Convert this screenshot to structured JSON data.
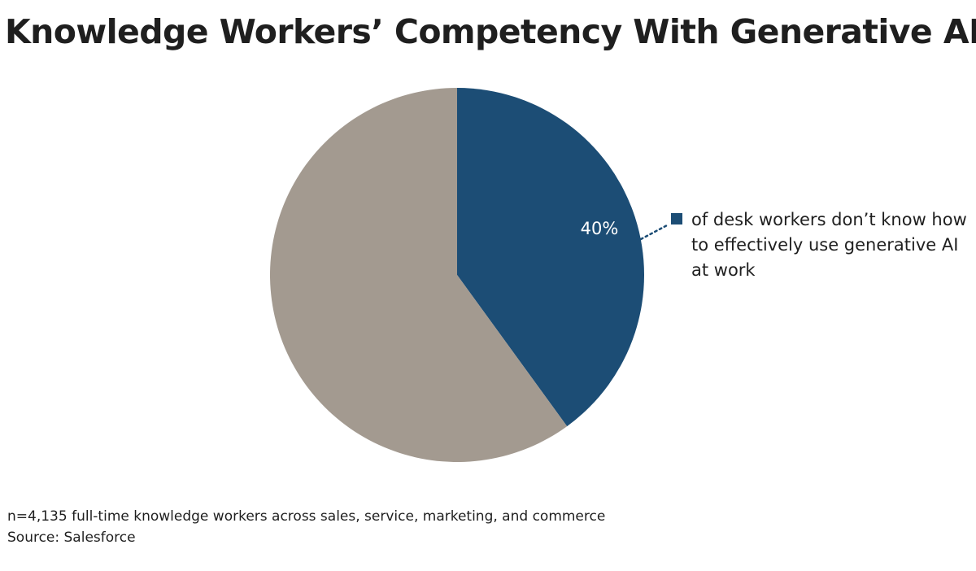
{
  "chart_data": {
    "type": "pie",
    "title": "Knowledge Workers’ Competency With Generative AI",
    "slices": [
      {
        "name": "of desk workers don’t know how to effectively use generative AI at work",
        "value": 40,
        "label": "40%",
        "color": "#1c4d75"
      },
      {
        "name": "",
        "value": 60,
        "label": "",
        "color": "#a39a90"
      }
    ],
    "legend": {
      "placement": "right",
      "text": "of desk workers don’t know how to effectively use generative AI at work",
      "swatch_color": "#1c4d75"
    },
    "start_angle": "12 o'clock",
    "direction": "clockwise",
    "grid": false
  },
  "footnotes": {
    "sample": "n=4,135 full-time knowledge workers across sales, service, marketing, and commerce",
    "source": "Source: Salesforce"
  },
  "colors": {
    "leader_line": "#1c4d75",
    "data_label": "#ffffff"
  }
}
